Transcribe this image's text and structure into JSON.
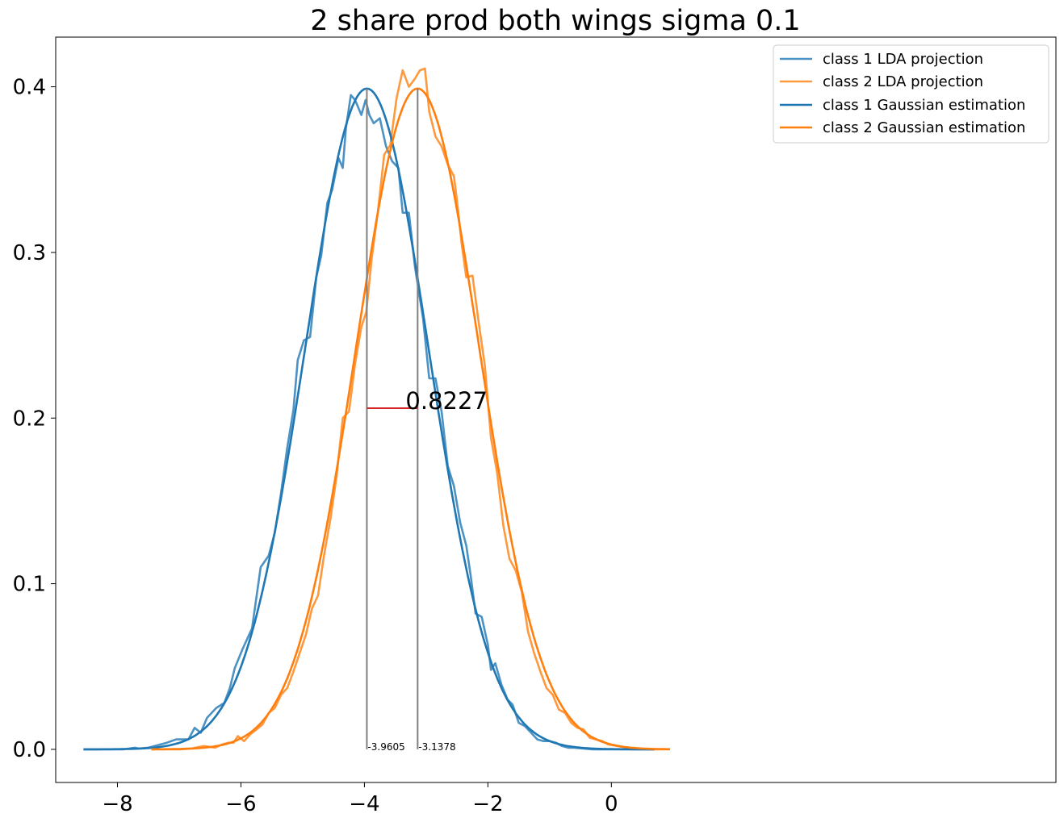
{
  "chart_data": {
    "type": "line",
    "title": "2 share prod both wings sigma 0.1",
    "xlabel": "",
    "ylabel": "",
    "xlim": [
      -9.0,
      7.2
    ],
    "ylim": [
      -0.02,
      0.43
    ],
    "x_ticks": [
      -8,
      -6,
      -4,
      -2,
      0
    ],
    "y_ticks": [
      0.0,
      0.1,
      0.2,
      0.3,
      0.4
    ],
    "x_tick_labels": [
      "−8",
      "−6",
      "−4",
      "−2",
      "0"
    ],
    "y_tick_labels": [
      "0.0",
      "0.1",
      "0.2",
      "0.3",
      "0.4"
    ],
    "grid": false,
    "legend_position": "top-right",
    "colors": {
      "class1": "#1f77b4",
      "class2": "#ff7f0e",
      "marker": "#808080",
      "difference": "#d62728"
    },
    "series": [
      {
        "name": "class 1 LDA projection",
        "kind": "histogram",
        "x": [
          -8.55,
          -8.2,
          -7.9,
          -7.72,
          -7.65,
          -7.5,
          -7.2,
          -7.05,
          -6.85,
          -6.75,
          -6.65,
          -6.55,
          -6.4,
          -6.27,
          -6.18,
          -6.1,
          -5.98,
          -5.82,
          -5.68,
          -5.55,
          -5.45,
          -5.35,
          -5.25,
          -5.15,
          -5.08,
          -4.98,
          -4.88,
          -4.78,
          -4.7,
          -4.6,
          -4.52,
          -4.42,
          -4.35,
          -4.3,
          -4.22,
          -4.15,
          -4.05,
          -3.98,
          -3.92,
          -3.85,
          -3.75,
          -3.65,
          -3.55,
          -3.45,
          -3.38,
          -3.28,
          -3.18,
          -3.05,
          -2.95,
          -2.85,
          -2.75,
          -2.65,
          -2.55,
          -2.45,
          -2.35,
          -2.28,
          -2.2,
          -2.1,
          -2.0,
          -1.95,
          -1.88,
          -1.78,
          -1.68,
          -1.6,
          -1.5,
          -1.4,
          -1.3,
          -1.2,
          -1.1,
          -1.0,
          -0.9,
          -0.8,
          -0.7,
          -0.6,
          -0.45,
          -0.3,
          -0.15,
          0.0,
          0.15,
          0.3,
          0.5,
          0.7
        ],
        "y": [
          0.0,
          0.0,
          0.0,
          0.001,
          0.0005,
          0.001,
          0.004,
          0.006,
          0.006,
          0.013,
          0.01,
          0.019,
          0.025,
          0.028,
          0.037,
          0.049,
          0.06,
          0.073,
          0.11,
          0.117,
          0.131,
          0.155,
          0.182,
          0.205,
          0.235,
          0.247,
          0.249,
          0.285,
          0.298,
          0.33,
          0.338,
          0.357,
          0.351,
          0.375,
          0.395,
          0.392,
          0.383,
          0.392,
          0.383,
          0.378,
          0.381,
          0.364,
          0.355,
          0.351,
          0.324,
          0.324,
          0.291,
          0.26,
          0.224,
          0.224,
          0.204,
          0.171,
          0.159,
          0.137,
          0.123,
          0.105,
          0.082,
          0.08,
          0.063,
          0.048,
          0.052,
          0.039,
          0.03,
          0.027,
          0.016,
          0.014,
          0.01,
          0.006,
          0.005,
          0.005,
          0.004,
          0.002,
          0.001,
          0.001,
          0.0005,
          0.0,
          0.0,
          0.0,
          0.0,
          0.0,
          0.0,
          0.0
        ]
      },
      {
        "name": "class 2 LDA projection",
        "kind": "histogram",
        "x": [
          -7.45,
          -7.2,
          -7.0,
          -6.8,
          -6.6,
          -6.42,
          -6.3,
          -6.2,
          -6.12,
          -6.05,
          -5.95,
          -5.85,
          -5.75,
          -5.65,
          -5.55,
          -5.45,
          -5.35,
          -5.25,
          -5.15,
          -5.05,
          -4.95,
          -4.85,
          -4.75,
          -4.65,
          -4.55,
          -4.45,
          -4.35,
          -4.25,
          -4.15,
          -4.05,
          -3.97,
          -3.88,
          -3.78,
          -3.68,
          -3.58,
          -3.48,
          -3.38,
          -3.28,
          -3.18,
          -3.1,
          -3.02,
          -2.95,
          -2.85,
          -2.75,
          -2.65,
          -2.55,
          -2.5,
          -2.42,
          -2.35,
          -2.25,
          -2.15,
          -2.05,
          -1.95,
          -1.85,
          -1.75,
          -1.65,
          -1.55,
          -1.45,
          -1.35,
          -1.25,
          -1.15,
          -1.05,
          -0.95,
          -0.85,
          -0.75,
          -0.65,
          -0.55,
          -0.45,
          -0.35,
          -0.25,
          -0.15,
          -0.05,
          0.1,
          0.25,
          0.4,
          0.55,
          0.7,
          0.85,
          0.95
        ],
        "y": [
          0.0,
          0.0,
          0.0,
          0.0005,
          0.002,
          0.001,
          0.003,
          0.004,
          0.004,
          0.008,
          0.005,
          0.009,
          0.012,
          0.015,
          0.022,
          0.025,
          0.033,
          0.037,
          0.047,
          0.058,
          0.069,
          0.085,
          0.093,
          0.118,
          0.139,
          0.165,
          0.2,
          0.204,
          0.233,
          0.255,
          0.264,
          0.297,
          0.325,
          0.359,
          0.365,
          0.393,
          0.41,
          0.4,
          0.405,
          0.41,
          0.411,
          0.385,
          0.37,
          0.364,
          0.353,
          0.346,
          0.331,
          0.304,
          0.285,
          0.286,
          0.258,
          0.232,
          0.188,
          0.167,
          0.135,
          0.115,
          0.108,
          0.095,
          0.071,
          0.058,
          0.047,
          0.037,
          0.033,
          0.024,
          0.022,
          0.016,
          0.013,
          0.012,
          0.007,
          0.006,
          0.005,
          0.003,
          0.002,
          0.001,
          0.0005,
          0.0,
          0.0,
          0.0,
          0.0
        ]
      },
      {
        "name": "class 1 Gaussian estimation",
        "kind": "gaussian",
        "mean": -3.9605,
        "sigma": 1.0,
        "x_range": [
          -8.55,
          0.7
        ]
      },
      {
        "name": "class 2 Gaussian estimation",
        "kind": "gaussian",
        "mean": -3.1378,
        "sigma": 1.0,
        "x_range": [
          -7.45,
          0.95
        ]
      }
    ],
    "annotations": {
      "mean_markers": [
        {
          "x": -3.9605,
          "y_top": 0.399,
          "label": "-3.9605"
        },
        {
          "x": -3.1378,
          "y_top": 0.399,
          "label": "-3.1378"
        }
      ],
      "difference": {
        "x_from": -3.9605,
        "x_to": -3.1378,
        "y": 0.206,
        "label": "0.8227"
      }
    }
  }
}
